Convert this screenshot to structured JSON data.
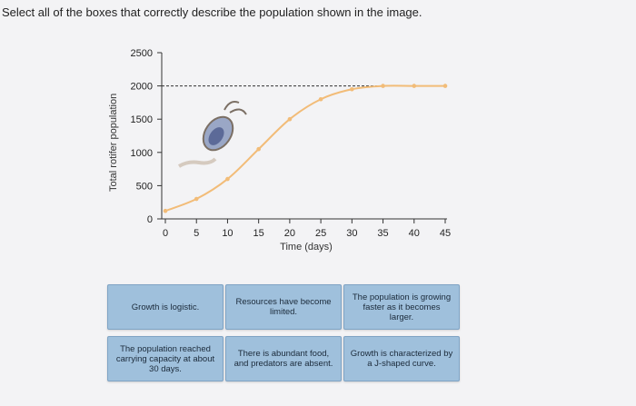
{
  "question": "Select all of the boxes that correctly describe the population shown in the image.",
  "colors": {
    "curve": "#f2bc78",
    "dash": "#333333",
    "box_bg": "#9fc0dc",
    "box_border": "#7fa3c4"
  },
  "chart_data": {
    "type": "line",
    "xlabel": "Time (days)",
    "ylabel": "Total rotifer population",
    "xlim": [
      0,
      45
    ],
    "ylim": [
      0,
      2500
    ],
    "x_ticks": [
      "0",
      "5",
      "10",
      "15",
      "20",
      "25",
      "30",
      "35",
      "40",
      "45"
    ],
    "y_ticks": [
      "0",
      "500",
      "1000",
      "1500",
      "2000",
      "2500"
    ],
    "carrying_capacity_line": 2000,
    "series": [
      {
        "x": [
          0,
          5,
          10,
          15,
          20,
          25,
          30,
          35,
          40,
          45
        ],
        "y": [
          120,
          300,
          600,
          1050,
          1500,
          1800,
          1950,
          2000,
          2000,
          2000
        ]
      }
    ],
    "image": "rotifer-illustration"
  },
  "answers": [
    "Growth is logistic.",
    "Resources have become limited.",
    "The population is growing faster as it becomes larger.",
    "The population reached carrying capacity at about 30 days.",
    "There is abundant food, and predators are absent.",
    "Growth is characterized by a J-shaped curve."
  ]
}
